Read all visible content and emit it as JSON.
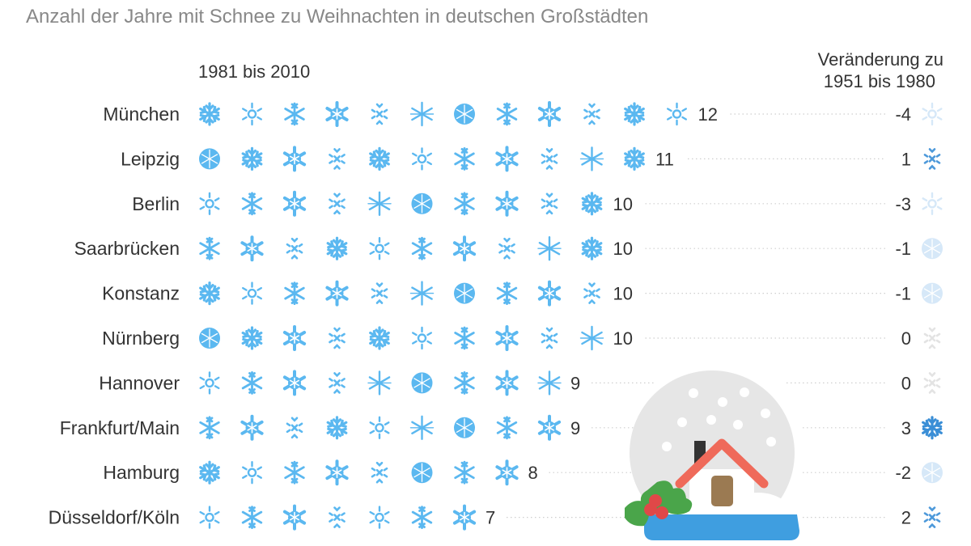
{
  "chart_data": {
    "type": "pictogram",
    "title": "Anzahl der Jahre mit Schnee zu Weihnachten in deutschen Großstädten",
    "period_label": "1981 bis 2010",
    "change_label_line1": "Veränderung zu",
    "change_label_line2": "1951 bis 1980",
    "categories": [
      "München",
      "Leipzig",
      "Berlin",
      "Saarbrücken",
      "Konstanz",
      "Nürnberg",
      "Hannover",
      "Frankfurt/Main",
      "Hamburg",
      "Düsseldorf/Köln"
    ],
    "series": [
      {
        "values": [
          12,
          11,
          10,
          10,
          10,
          10,
          9,
          9,
          8,
          7
        ]
      },
      {
        "values": [
          -4,
          1,
          -3,
          -1,
          -1,
          0,
          0,
          3,
          -2,
          2
        ]
      }
    ],
    "change_labels": [
      "-4",
      "1",
      "-3",
      "-1",
      "-1",
      "0",
      "0",
      "3",
      "-2",
      "2"
    ]
  },
  "colors": {
    "snowflake": "#5bb8f0",
    "change_up": "#3a8ed6",
    "change_down": "#d6e8f8",
    "change_zero": "#e3e3e3",
    "globe": "#e6e6e6",
    "roof": "#ef6a5a",
    "door": "#9b7a52",
    "base": "#3f9ee0",
    "holly": "#4aa54a",
    "berry": "#e04848"
  },
  "decoration": "snow-globe-house-icon"
}
